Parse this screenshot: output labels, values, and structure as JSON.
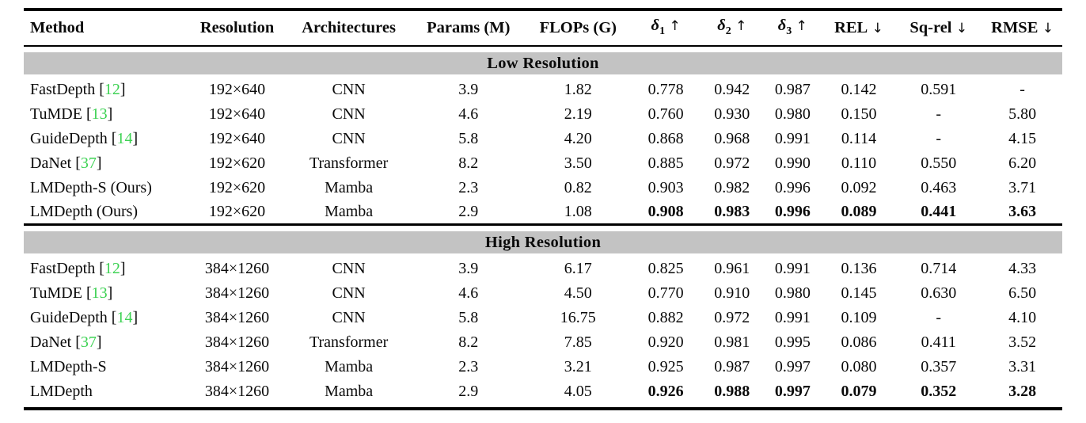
{
  "colors": {
    "citation_green": "#3dd253",
    "section_band_gray": "#c3c3c3",
    "rule_black": "#000000",
    "text": "#0a0a0a"
  },
  "table": {
    "columns": [
      {
        "id": "method",
        "label": "Method",
        "align": "left"
      },
      {
        "id": "resolution",
        "label": "Resolution"
      },
      {
        "id": "architectures",
        "label": "Architectures"
      },
      {
        "id": "params",
        "label": "Params (M)"
      },
      {
        "id": "flops",
        "label": "FLOPs (G)"
      },
      {
        "id": "delta1",
        "symbol": "δ",
        "sub": "1",
        "arrow": "↑"
      },
      {
        "id": "delta2",
        "symbol": "δ",
        "sub": "2",
        "arrow": "↑"
      },
      {
        "id": "delta3",
        "symbol": "δ",
        "sub": "3",
        "arrow": "↑"
      },
      {
        "id": "rel",
        "label": "REL",
        "arrow": "↓"
      },
      {
        "id": "sqrel",
        "label": "Sq-rel",
        "arrow": "↓"
      },
      {
        "id": "rmse",
        "label": "RMSE",
        "arrow": "↓"
      }
    ],
    "sections": [
      {
        "title": "Low Resolution",
        "rows": [
          {
            "method": "FastDepth",
            "cite": "12",
            "values": [
              "192×640",
              "CNN",
              "3.9",
              "1.82",
              "0.778",
              "0.942",
              "0.987",
              "0.142",
              "0.591",
              "-"
            ],
            "bold_metrics": false
          },
          {
            "method": "TuMDE",
            "cite": "13",
            "values": [
              "192×640",
              "CNN",
              "4.6",
              "2.19",
              "0.760",
              "0.930",
              "0.980",
              "0.150",
              "-",
              "5.80"
            ],
            "bold_metrics": false
          },
          {
            "method": "GuideDepth",
            "cite": "14",
            "values": [
              "192×640",
              "CNN",
              "5.8",
              "4.20",
              "0.868",
              "0.968",
              "0.991",
              "0.114",
              "-",
              "4.15"
            ],
            "bold_metrics": false
          },
          {
            "method": "DaNet",
            "cite": "37",
            "values": [
              "192×620",
              "Transformer",
              "8.2",
              "3.50",
              "0.885",
              "0.972",
              "0.990",
              "0.110",
              "0.550",
              "6.20"
            ],
            "bold_metrics": false
          },
          {
            "method": "LMDepth-S (Ours)",
            "cite": null,
            "values": [
              "192×620",
              "Mamba",
              "2.3",
              "0.82",
              "0.903",
              "0.982",
              "0.996",
              "0.092",
              "0.463",
              "3.71"
            ],
            "bold_metrics": false
          },
          {
            "method": "LMDepth (Ours)",
            "cite": null,
            "values": [
              "192×620",
              "Mamba",
              "2.9",
              "1.08",
              "0.908",
              "0.983",
              "0.996",
              "0.089",
              "0.441",
              "3.63"
            ],
            "bold_metrics": true
          }
        ]
      },
      {
        "title": "High Resolution",
        "rows": [
          {
            "method": "FastDepth",
            "cite": "12",
            "values": [
              "384×1260",
              "CNN",
              "3.9",
              "6.17",
              "0.825",
              "0.961",
              "0.991",
              "0.136",
              "0.714",
              "4.33"
            ],
            "bold_metrics": false
          },
          {
            "method": "TuMDE",
            "cite": "13",
            "values": [
              "384×1260",
              "CNN",
              "4.6",
              "4.50",
              "0.770",
              "0.910",
              "0.980",
              "0.145",
              "0.630",
              "6.50"
            ],
            "bold_metrics": false
          },
          {
            "method": "GuideDepth",
            "cite": "14",
            "values": [
              "384×1260",
              "CNN",
              "5.8",
              "16.75",
              "0.882",
              "0.972",
              "0.991",
              "0.109",
              "-",
              "4.10"
            ],
            "bold_metrics": false
          },
          {
            "method": "DaNet",
            "cite": "37",
            "values": [
              "384×1260",
              "Transformer",
              "8.2",
              "7.85",
              "0.920",
              "0.981",
              "0.995",
              "0.086",
              "0.411",
              "3.52"
            ],
            "bold_metrics": false
          },
          {
            "method": "LMDepth-S",
            "cite": null,
            "values": [
              "384×1260",
              "Mamba",
              "2.3",
              "3.21",
              "0.925",
              "0.987",
              "0.997",
              "0.080",
              "0.357",
              "3.31"
            ],
            "bold_metrics": false
          },
          {
            "method": "LMDepth",
            "cite": null,
            "values": [
              "384×1260",
              "Mamba",
              "2.9",
              "4.05",
              "0.926",
              "0.988",
              "0.997",
              "0.079",
              "0.352",
              "3.28"
            ],
            "bold_metrics": true
          }
        ]
      }
    ],
    "bold_metrics_start_value_index": 4,
    "citation_bracket_open": "[",
    "citation_bracket_close": "]"
  }
}
